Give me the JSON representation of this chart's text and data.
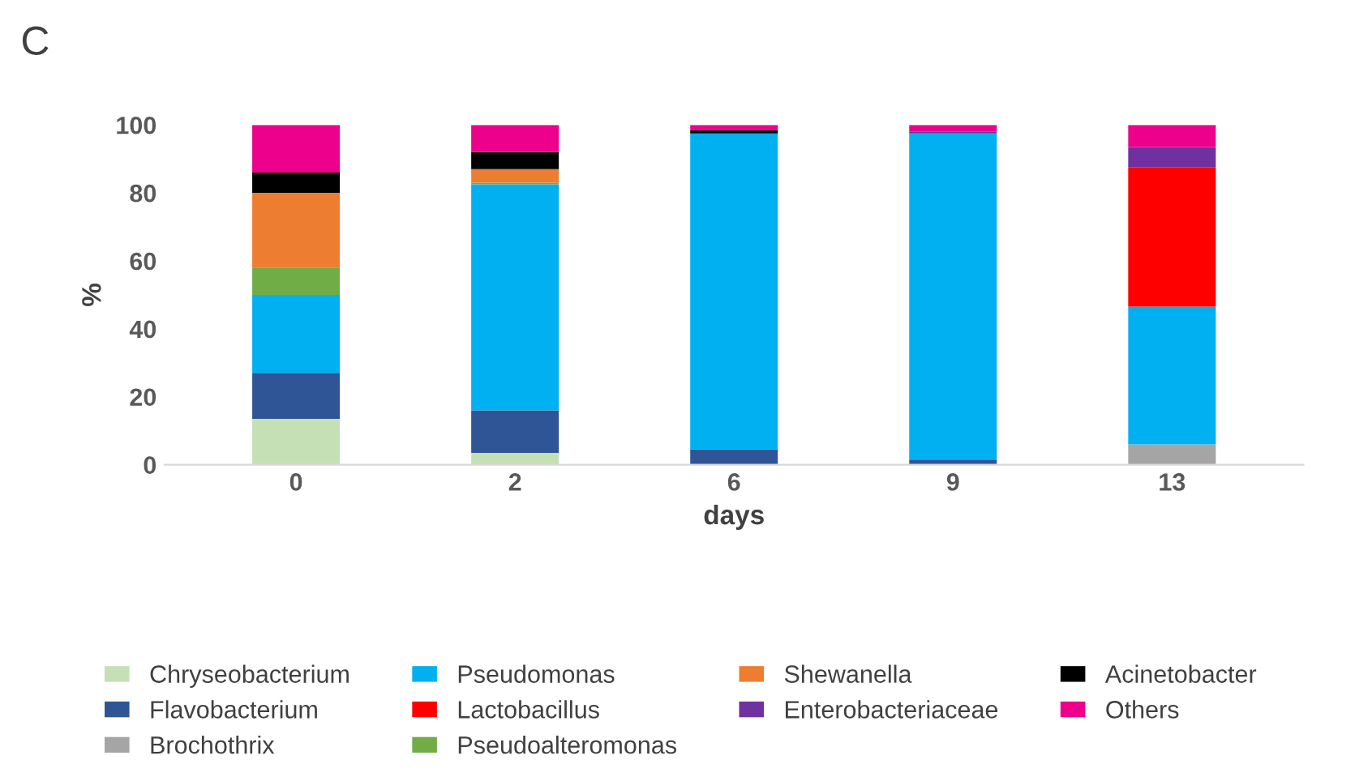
{
  "chart_data": {
    "type": "bar",
    "stacked": true,
    "categories": [
      "0",
      "2",
      "6",
      "9",
      "13"
    ],
    "xlabel": "days",
    "ylabel": "%",
    "ylim": [
      0,
      100
    ],
    "yticks": [
      0,
      20,
      40,
      60,
      80,
      100
    ],
    "grid": false,
    "legend": "bottom",
    "annotations": [
      "C"
    ],
    "series": [
      {
        "name": "Chryseobacterium",
        "color": "#c5e0b4",
        "values": [
          13.5,
          3.5,
          0,
          0,
          0
        ]
      },
      {
        "name": "Flavobacterium",
        "color": "#2f5597",
        "values": [
          13.5,
          12.5,
          4.5,
          1.5,
          0
        ]
      },
      {
        "name": "Brochothrix",
        "color": "#a5a5a5",
        "values": [
          0,
          0,
          0,
          0,
          6
        ]
      },
      {
        "name": "Pseudomonas",
        "color": "#00b0f0",
        "values": [
          23,
          66.5,
          93,
          96,
          40.5
        ]
      },
      {
        "name": "Lactobacillus",
        "color": "#ff0000",
        "values": [
          0,
          0,
          0,
          0,
          41
        ]
      },
      {
        "name": "Pseudoalteromonas",
        "color": "#70ad47",
        "values": [
          8,
          0.5,
          0,
          0,
          0
        ]
      },
      {
        "name": "Shewanella",
        "color": "#ed7d31",
        "values": [
          22,
          4,
          0,
          0,
          0
        ]
      },
      {
        "name": "Enterobacteriaceae",
        "color": "#7030a0",
        "values": [
          0,
          0,
          0,
          0.5,
          6
        ]
      },
      {
        "name": "Acinetobacter",
        "color": "#000000",
        "values": [
          6,
          5,
          1,
          0,
          0
        ]
      },
      {
        "name": "Others",
        "color": "#ec008c",
        "values": [
          14,
          8,
          1.5,
          2,
          6.5
        ]
      }
    ]
  }
}
